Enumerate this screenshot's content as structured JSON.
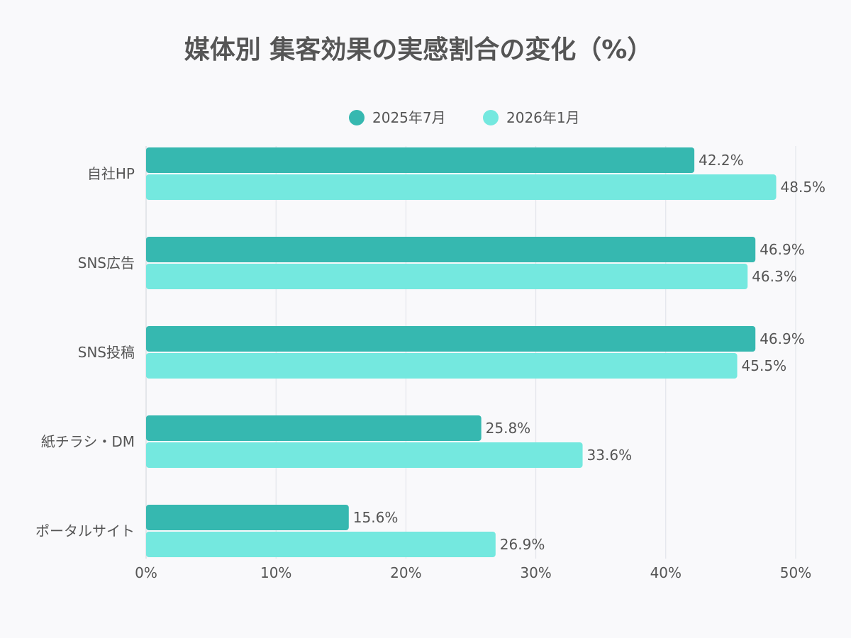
{
  "chart_data": {
    "type": "bar",
    "orientation": "horizontal",
    "title": "媒体別 集客効果の実感割合の変化（%）",
    "categories": [
      "自社HP",
      "SNS広告",
      "SNS投稿",
      "紙チラシ・DM",
      "ポータルサイト"
    ],
    "series": [
      {
        "name": "2025年7月",
        "color": "#36b8b0",
        "values": [
          42.2,
          46.9,
          46.9,
          25.8,
          15.6
        ],
        "labels": [
          "42.2%",
          "46.9%",
          "46.9%",
          "25.8%",
          "15.6%"
        ]
      },
      {
        "name": "2026年1月",
        "color": "#74e8df",
        "values": [
          48.5,
          46.3,
          45.5,
          33.6,
          26.9
        ],
        "labels": [
          "48.5%",
          "46.3%",
          "45.5%",
          "33.6%",
          "26.9%"
        ]
      }
    ],
    "xlim": [
      0,
      50
    ],
    "xticks": [
      0,
      10,
      20,
      30,
      40,
      50
    ],
    "xtick_labels": [
      "0%",
      "10%",
      "20%",
      "30%",
      "40%",
      "50%"
    ],
    "grid": true,
    "legend_position": "top-center"
  }
}
